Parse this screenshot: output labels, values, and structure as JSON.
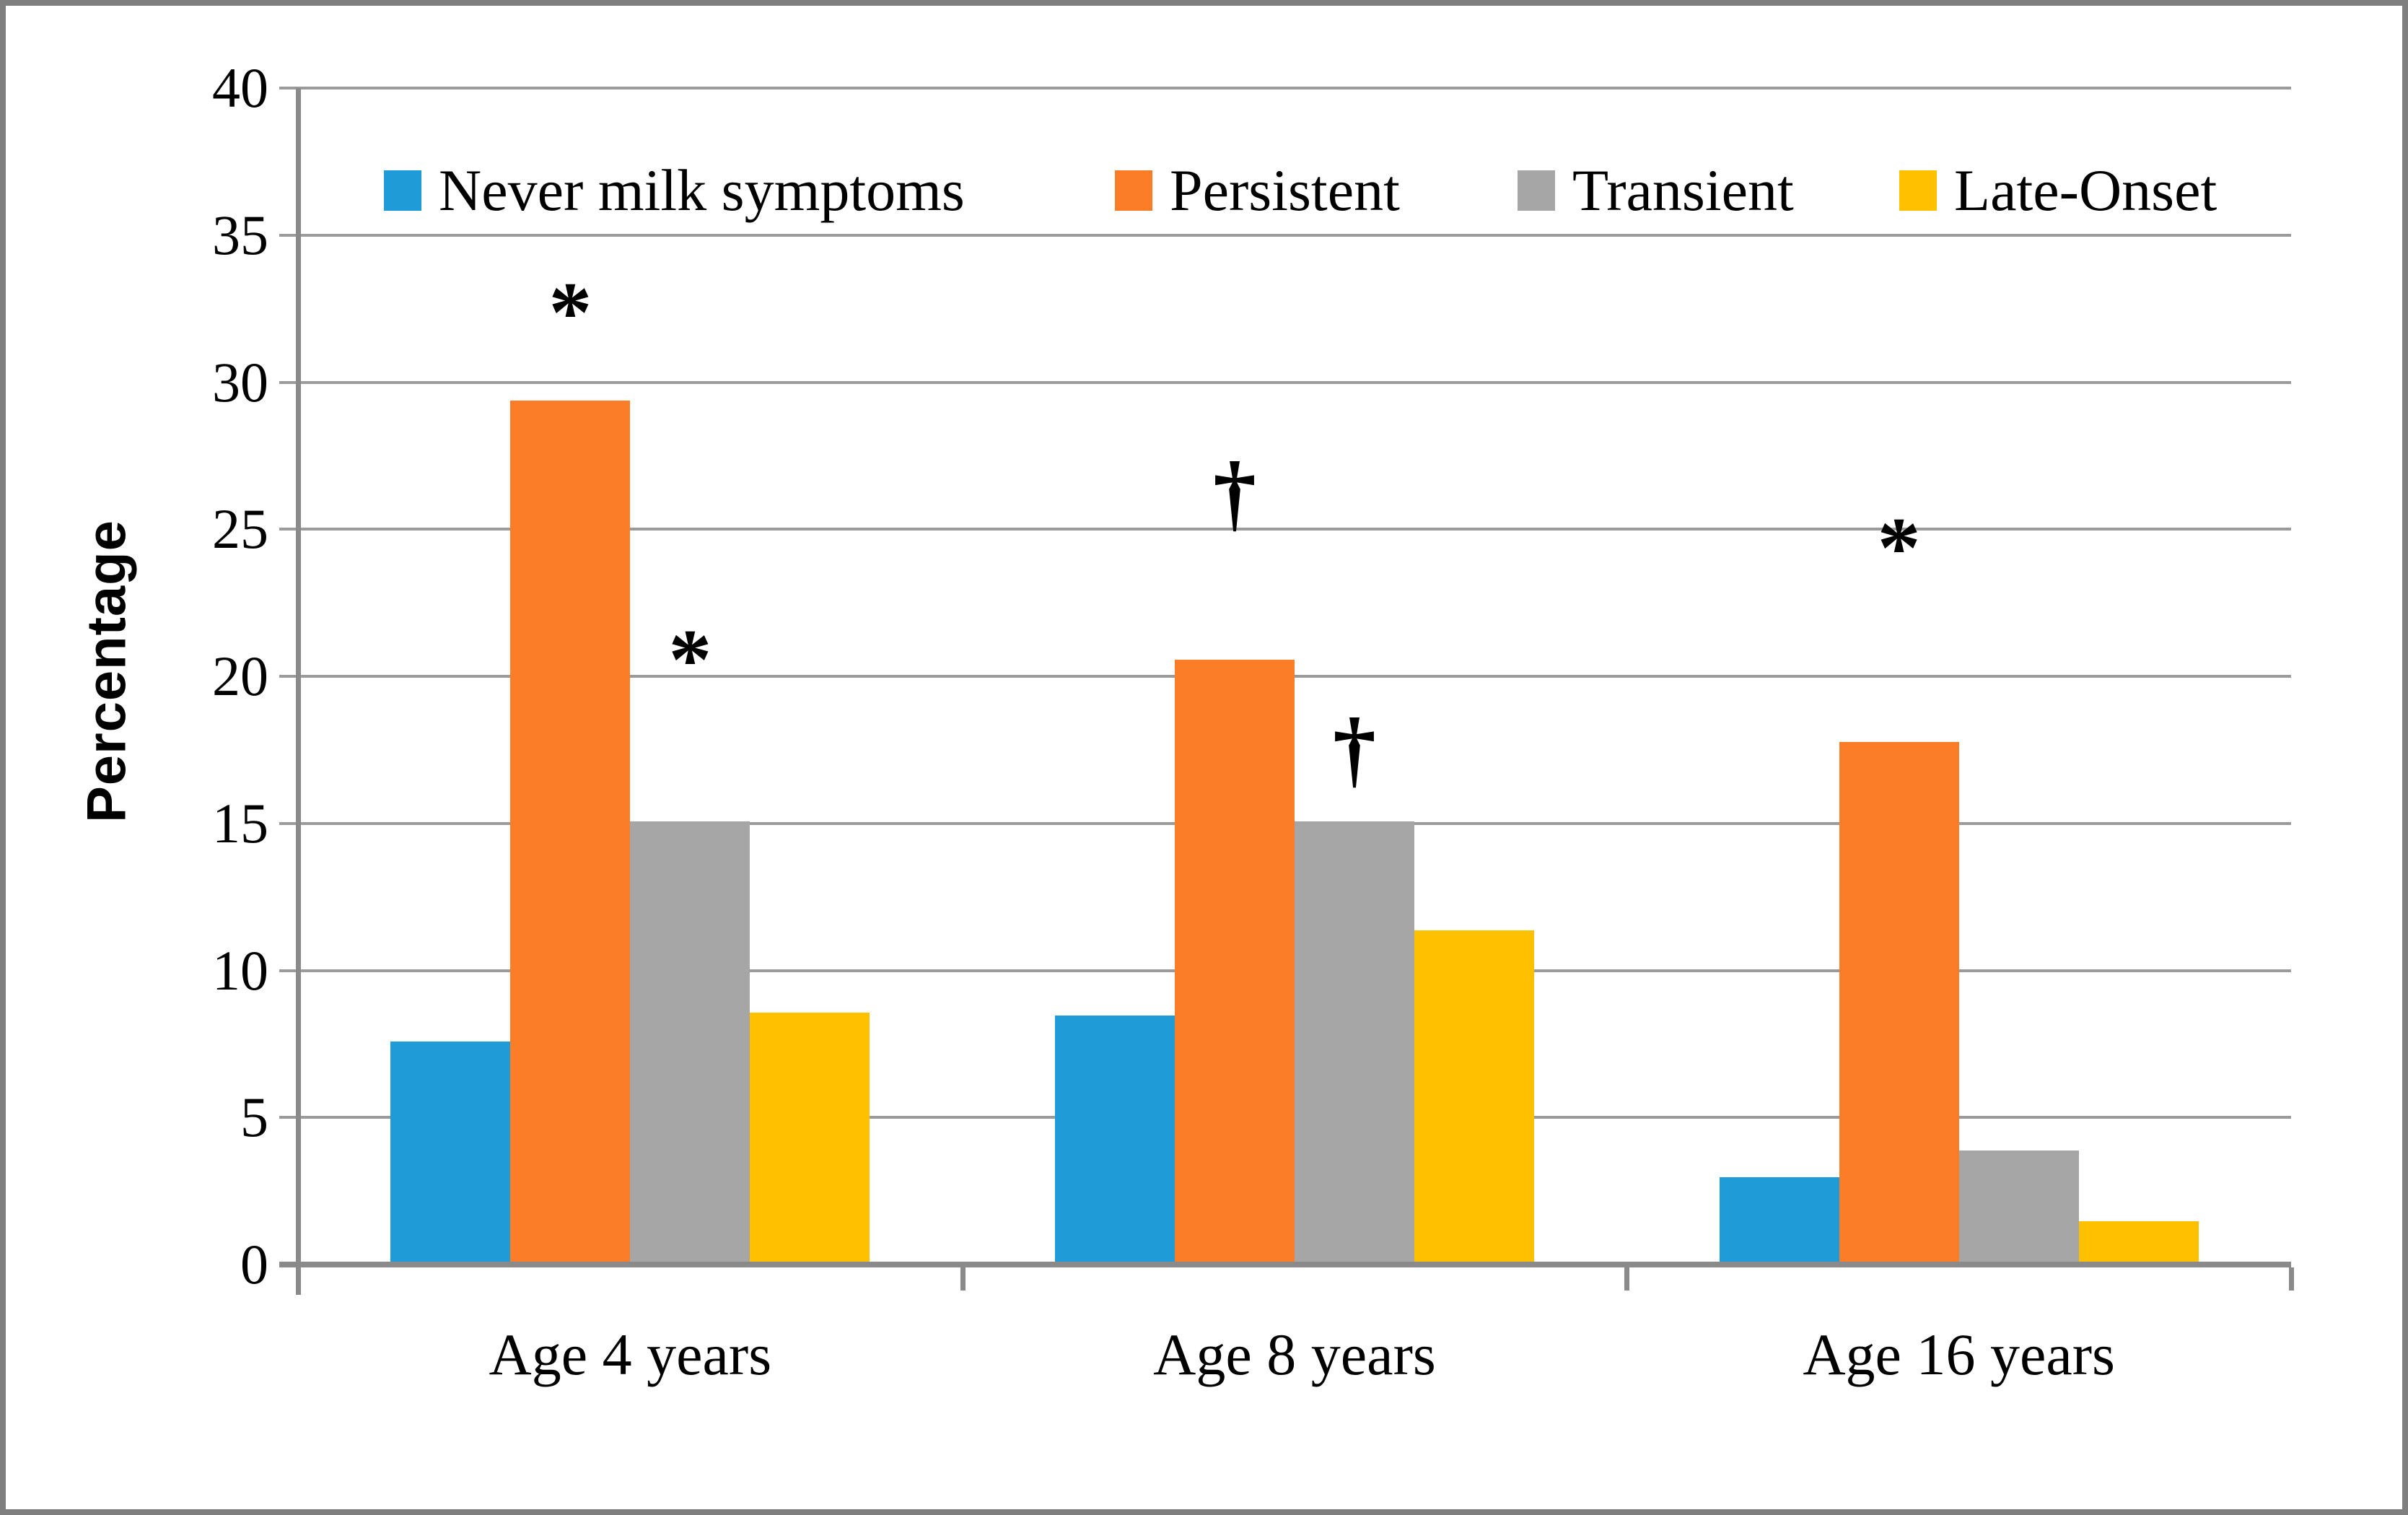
{
  "chart_data": {
    "type": "bar",
    "title": "",
    "xlabel": "",
    "ylabel": "Percentage",
    "ylim": [
      0,
      40
    ],
    "ytick_step": 5,
    "yticks": [
      0,
      5,
      10,
      15,
      20,
      25,
      30,
      35,
      40
    ],
    "grid": true,
    "legend_position": "top",
    "categories": [
      "Age 4 years",
      "Age 8 years",
      "Age 16 years"
    ],
    "series": [
      {
        "name": "Never milk symptoms",
        "color": "#1F9CD8",
        "values": [
          7.5,
          8.4,
          2.9
        ]
      },
      {
        "name": "Persistent",
        "color": "#FB7D27",
        "values": [
          29.3,
          20.5,
          17.7
        ]
      },
      {
        "name": "Transient",
        "color": "#A6A6A6",
        "values": [
          15.0,
          15.0,
          3.8
        ]
      },
      {
        "name": "Late-Onset",
        "color": "#FFC000",
        "values": [
          8.5,
          11.3,
          1.4
        ]
      }
    ],
    "annotations": [
      {
        "symbol": "*",
        "category": 0,
        "series": 1,
        "y_value": 33.1
      },
      {
        "symbol": "*",
        "category": 0,
        "series": 2,
        "y_value": 21.3
      },
      {
        "symbol": "†",
        "category": 1,
        "series": 1,
        "y_value": 26.5
      },
      {
        "symbol": "†",
        "category": 1,
        "series": 2,
        "y_value": 17.8
      },
      {
        "symbol": "*",
        "category": 2,
        "series": 1,
        "y_value": 25.1
      }
    ],
    "colors": {
      "gridline": "#9B9B9B",
      "axis": "#8A8A8A",
      "frame_border": "#7F7F7F",
      "background": "#FFFFFF",
      "text": "#000000"
    }
  }
}
